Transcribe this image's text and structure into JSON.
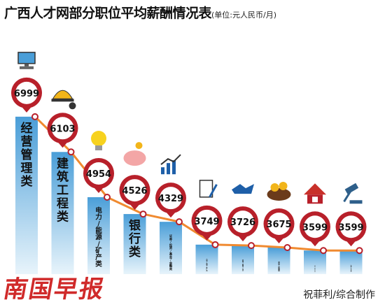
{
  "title": "广西人才网部分职位平均薪酬情况表",
  "unit": "(单位:元人民币/月)",
  "credit": "祝菲利/综合制作",
  "brand": "南国早报",
  "colors": {
    "bar_top": "#4a9ed8",
    "bar_bottom": "#e8f4fb",
    "line": "#f08a30",
    "pin": "#b8202a",
    "pin_face": "#ffffff"
  },
  "chart_data": {
    "type": "bar",
    "title": "广西人才网部分职位平均薪酬情况表",
    "unit": "(单位:元人民币/月)",
    "categories": [
      "经营管理类",
      "建筑工程类",
      "电力/能源/矿产类",
      "银行类",
      "证券/投资/基金/金融类",
      "市场/策划/推广类",
      "咨询/顾问/中介",
      "美容/保健类",
      "房地产/房地产中介类",
      "法律/法务类"
    ],
    "values": [
      6999,
      6103,
      4954,
      4526,
      4329,
      3749,
      3726,
      3675,
      3599,
      3599
    ],
    "icons": [
      "computer-icon",
      "hardhat-wrench-icon",
      "lightbulb-icon",
      "piggy-bank-icon",
      "bar-chart-icon",
      "document-pen-icon",
      "handshake-icon",
      "flowers-icon",
      "house-icon",
      "gavel-icon"
    ],
    "ylim": [
      0,
      7500
    ],
    "overlay": "line",
    "data_labels": true,
    "grid": false,
    "legend": "none"
  }
}
